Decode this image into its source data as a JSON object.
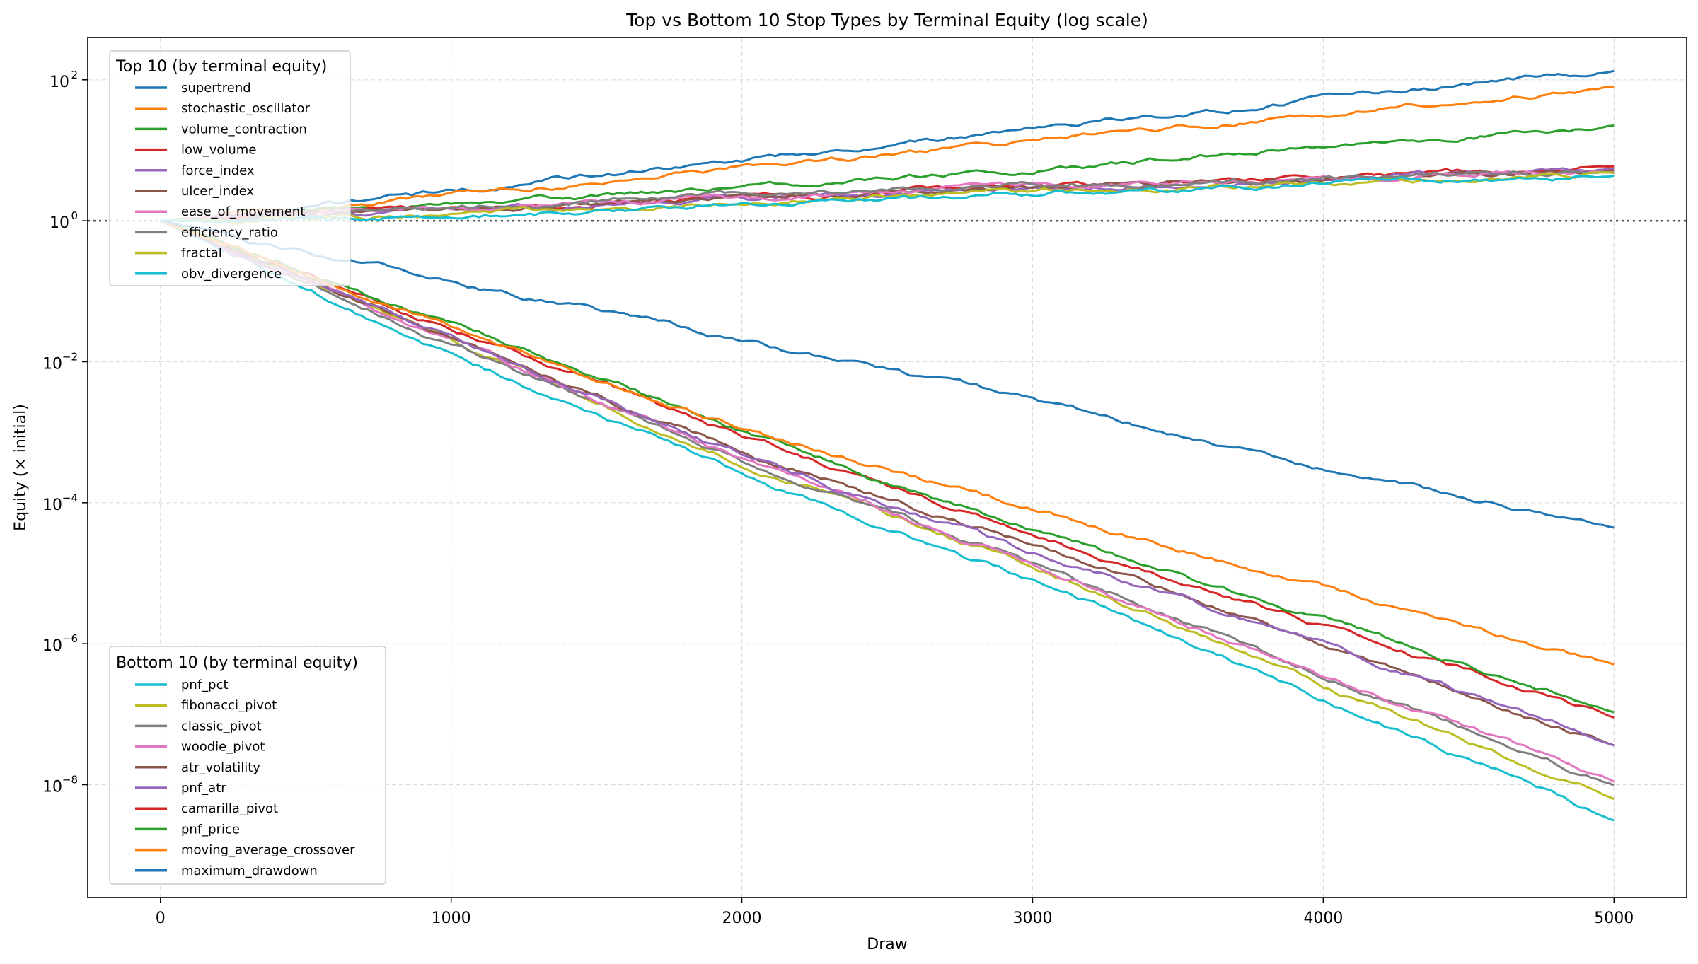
{
  "chart_data": {
    "type": "line",
    "title": "Top vs Bottom 10 Stop Types by Terminal Equity (log scale)",
    "xlabel": "Draw",
    "ylabel": "Equity (× initial)",
    "yscale": "log",
    "xlim": [
      -250,
      5250
    ],
    "ylim_log10": [
      -9.6,
      2.6
    ],
    "xticks": [
      0,
      1000,
      2000,
      3000,
      4000,
      5000
    ],
    "xtick_labels": [
      "0",
      "1000",
      "2000",
      "3000",
      "4000",
      "5000"
    ],
    "yticks_log10": [
      2,
      0,
      -2,
      -4,
      -6,
      -8
    ],
    "ytick_base": "10",
    "ytick_exponents": [
      "2",
      "0",
      "−2",
      "−4",
      "−6",
      "−8"
    ],
    "grid": true,
    "reference_line": {
      "y": 1,
      "style": "dotted"
    },
    "legend_top": {
      "title": "Top 10 (by terminal equity)",
      "placement": "upper-left",
      "entries": [
        "supertrend",
        "stochastic_oscillator",
        "volume_contraction",
        "low_volume",
        "force_index",
        "ulcer_index",
        "ease_of_movement",
        "efficiency_ratio",
        "fractal",
        "obv_divergence"
      ]
    },
    "legend_bottom": {
      "title": "Bottom 10 (by terminal equity)",
      "placement": "lower-left",
      "entries": [
        "pnf_pct",
        "fibonacci_pivot",
        "classic_pivot",
        "woodie_pivot",
        "atr_volatility",
        "pnf_atr",
        "camarilla_pivot",
        "pnf_price",
        "moving_average_crossover",
        "maximum_drawdown"
      ]
    },
    "top_series": [
      {
        "name": "supertrend",
        "color": "#1f77b4",
        "x": [
          0,
          1000,
          2000,
          3000,
          4000,
          5000
        ],
        "log10_y": [
          0,
          0.42,
          0.86,
          1.3,
          1.72,
          2.13
        ]
      },
      {
        "name": "stochastic_oscillator",
        "color": "#ff7f0e",
        "x": [
          0,
          1000,
          2000,
          3000,
          4000,
          5000
        ],
        "log10_y": [
          0,
          0.34,
          0.73,
          1.12,
          1.5,
          1.9
        ]
      },
      {
        "name": "volume_contraction",
        "color": "#2ca02c",
        "x": [
          0,
          1000,
          2000,
          3000,
          4000,
          5000
        ],
        "log10_y": [
          0,
          0.22,
          0.48,
          0.72,
          1.04,
          1.35
        ]
      },
      {
        "name": "low_volume",
        "color": "#d62728",
        "x": [
          0,
          1000,
          2000,
          3000,
          4000,
          5000
        ],
        "log10_y": [
          0,
          0.16,
          0.31,
          0.48,
          0.62,
          0.77
        ]
      },
      {
        "name": "force_index",
        "color": "#9467bd",
        "x": [
          0,
          1000,
          2000,
          3000,
          4000,
          5000
        ],
        "log10_y": [
          0,
          0.15,
          0.3,
          0.45,
          0.58,
          0.74
        ]
      },
      {
        "name": "ulcer_index",
        "color": "#8c564b",
        "x": [
          0,
          1000,
          2000,
          3000,
          4000,
          5000
        ],
        "log10_y": [
          0,
          0.17,
          0.33,
          0.47,
          0.6,
          0.72
        ]
      },
      {
        "name": "ease_of_movement",
        "color": "#e377c2",
        "x": [
          0,
          1000,
          2000,
          3000,
          4000,
          5000
        ],
        "log10_y": [
          0,
          0.18,
          0.35,
          0.48,
          0.6,
          0.7
        ]
      },
      {
        "name": "efficiency_ratio",
        "color": "#7f7f7f",
        "x": [
          0,
          1000,
          2000,
          3000,
          4000,
          5000
        ],
        "log10_y": [
          0,
          0.17,
          0.36,
          0.5,
          0.6,
          0.68
        ]
      },
      {
        "name": "fractal",
        "color": "#bcbd22",
        "x": [
          0,
          1000,
          2000,
          3000,
          4000,
          5000
        ],
        "log10_y": [
          0,
          0.08,
          0.26,
          0.42,
          0.55,
          0.67
        ]
      },
      {
        "name": "obv_divergence",
        "color": "#17becf",
        "x": [
          0,
          1000,
          2000,
          3000,
          4000,
          5000
        ],
        "log10_y": [
          0,
          0.05,
          0.22,
          0.38,
          0.52,
          0.64
        ]
      }
    ],
    "bottom_series": [
      {
        "name": "pnf_pct",
        "color": "#17becf",
        "x": [
          0,
          1000,
          2000,
          3000,
          4000,
          5000
        ],
        "log10_y": [
          0,
          -1.9,
          -3.6,
          -5.1,
          -6.8,
          -8.5
        ]
      },
      {
        "name": "fibonacci_pivot",
        "color": "#bcbd22",
        "x": [
          0,
          1000,
          2000,
          3000,
          4000,
          5000
        ],
        "log10_y": [
          0,
          -1.7,
          -3.45,
          -4.9,
          -6.6,
          -8.2
        ]
      },
      {
        "name": "classic_pivot",
        "color": "#7f7f7f",
        "x": [
          0,
          1000,
          2000,
          3000,
          4000,
          5000
        ],
        "log10_y": [
          0,
          -1.75,
          -3.4,
          -4.85,
          -6.45,
          -8.0
        ]
      },
      {
        "name": "woodie_pivot",
        "color": "#e377c2",
        "x": [
          0,
          1000,
          2000,
          3000,
          4000,
          5000
        ],
        "log10_y": [
          0,
          -1.7,
          -3.35,
          -4.85,
          -6.45,
          -7.95
        ]
      },
      {
        "name": "atr_volatility",
        "color": "#8c564b",
        "x": [
          0,
          1000,
          2000,
          3000,
          4000,
          5000
        ],
        "log10_y": [
          0,
          -1.65,
          -3.3,
          -4.6,
          -6.0,
          -7.45
        ]
      },
      {
        "name": "pnf_atr",
        "color": "#9467bd",
        "x": [
          0,
          1000,
          2000,
          3000,
          4000,
          5000
        ],
        "log10_y": [
          0,
          -1.65,
          -3.35,
          -4.7,
          -6.0,
          -7.45
        ]
      },
      {
        "name": "camarilla_pivot",
        "color": "#d62728",
        "x": [
          0,
          1000,
          2000,
          3000,
          4000,
          5000
        ],
        "log10_y": [
          0,
          -1.55,
          -3.05,
          -4.45,
          -5.75,
          -7.05
        ]
      },
      {
        "name": "pnf_price",
        "color": "#2ca02c",
        "x": [
          0,
          1000,
          2000,
          3000,
          4000,
          5000
        ],
        "log10_y": [
          0,
          -1.45,
          -3.0,
          -4.4,
          -5.65,
          -6.97
        ]
      },
      {
        "name": "moving_average_crossover",
        "color": "#ff7f0e",
        "x": [
          0,
          1000,
          2000,
          3000,
          4000,
          5000
        ],
        "log10_y": [
          0,
          -1.5,
          -2.95,
          -4.1,
          -5.2,
          -6.3
        ]
      },
      {
        "name": "maximum_drawdown",
        "color": "#1f77b4",
        "x": [
          0,
          1000,
          2000,
          3000,
          4000,
          5000
        ],
        "log10_y": [
          0,
          -0.85,
          -1.7,
          -2.55,
          -3.5,
          -4.35
        ]
      }
    ]
  }
}
